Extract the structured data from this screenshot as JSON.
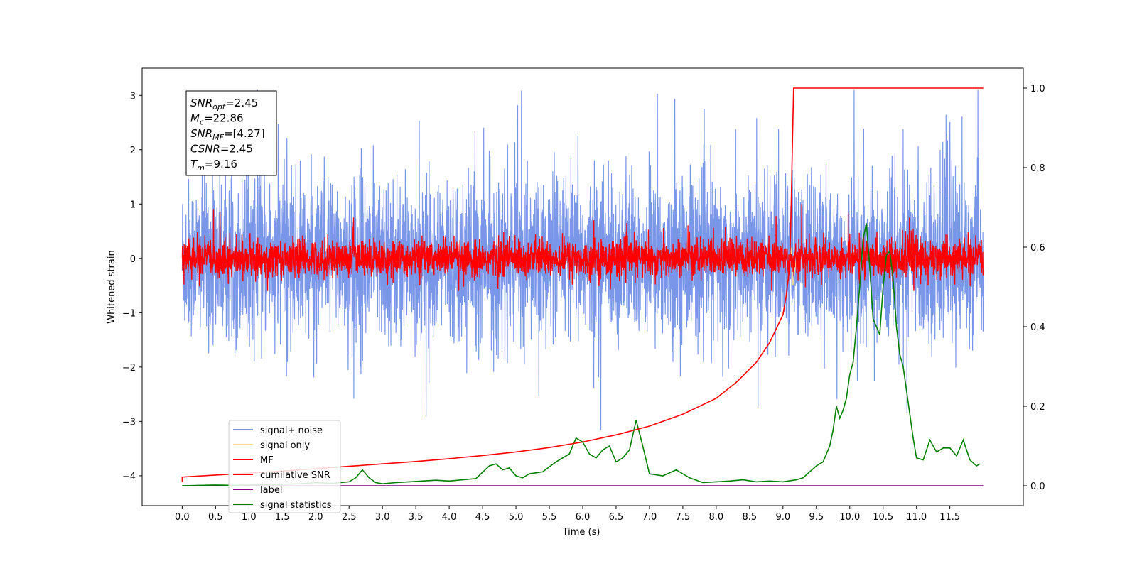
{
  "chart_data": {
    "type": "line",
    "title": "",
    "xlabel": "Time (s)",
    "ylabel": "Whitened strain",
    "y2label": "",
    "xlim": [
      -0.6,
      12.6
    ],
    "ylim": [
      -4.55,
      3.5
    ],
    "y2lim": [
      -0.05,
      1.05
    ],
    "x_ticks": [
      0.0,
      0.5,
      1.0,
      1.5,
      2.0,
      2.5,
      3.0,
      3.5,
      4.0,
      4.5,
      5.0,
      5.5,
      6.0,
      6.5,
      7.0,
      7.5,
      8.0,
      8.5,
      9.0,
      9.5,
      10.0,
      10.5,
      11.0,
      11.5
    ],
    "x_tick_labels": [
      "0.0",
      "0.5",
      "1.0",
      "1.5",
      "2.0",
      "2.5",
      "3.0",
      "3.5",
      "4.0",
      "4.5",
      "5.0",
      "5.5",
      "6.0",
      "6.5",
      "7.0",
      "7.5",
      "8.0",
      "8.5",
      "9.0",
      "9.5",
      "10.0",
      "10.5",
      "11.0",
      "11.5"
    ],
    "y_ticks": [
      -4,
      -3,
      -2,
      -1,
      0,
      1,
      2,
      3
    ],
    "y_tick_labels": [
      "−4",
      "−3",
      "−2",
      "−1",
      "0",
      "1",
      "2",
      "3"
    ],
    "y2_ticks": [
      0.0,
      0.2,
      0.4,
      0.6,
      0.8,
      1.0
    ],
    "y2_tick_labels": [
      "0.0",
      "0.2",
      "0.4",
      "0.6",
      "0.8",
      "1.0"
    ],
    "grid": false,
    "legend_position": "lower-left",
    "noise_trace": {
      "x_range": [
        0.0,
        12.0
      ],
      "baseline_range": [
        -1.7,
        1.7
      ],
      "approx_range": [
        -4.0,
        3.1
      ],
      "note_visible": "dense oscillating trace"
    },
    "mf_trace": {
      "x_range": [
        0.0,
        12.0
      ],
      "baseline_range": [
        -0.4,
        0.4
      ],
      "approx_range": [
        -0.6,
        1.0
      ]
    },
    "cumulative_snr": {
      "x": [
        0.0,
        0.5,
        1.0,
        1.5,
        2.0,
        2.5,
        3.0,
        3.5,
        4.0,
        4.5,
        5.0,
        5.5,
        6.0,
        6.5,
        7.0,
        7.5,
        8.0,
        8.3,
        8.6,
        8.8,
        9.0,
        9.05,
        9.1,
        9.12,
        9.14,
        9.16,
        12.0
      ],
      "y": [
        0.022,
        0.027,
        0.032,
        0.037,
        0.043,
        0.049,
        0.055,
        0.061,
        0.068,
        0.076,
        0.085,
        0.096,
        0.11,
        0.128,
        0.15,
        0.18,
        0.22,
        0.26,
        0.31,
        0.36,
        0.43,
        0.48,
        0.55,
        0.68,
        0.85,
        1.0,
        1.0
      ]
    },
    "label": {
      "x": [
        0.0,
        12.0
      ],
      "y": [
        0.0,
        0.0
      ]
    },
    "signal_statistics": {
      "x": [
        0.0,
        0.25,
        0.5,
        0.75,
        1.0,
        1.25,
        1.5,
        1.75,
        2.0,
        2.25,
        2.5,
        2.6,
        2.7,
        2.8,
        2.9,
        3.0,
        3.2,
        3.4,
        3.6,
        3.8,
        4.0,
        4.2,
        4.4,
        4.6,
        4.7,
        4.8,
        4.9,
        5.0,
        5.1,
        5.2,
        5.4,
        5.6,
        5.8,
        5.9,
        6.0,
        6.1,
        6.2,
        6.3,
        6.4,
        6.5,
        6.6,
        6.7,
        6.8,
        6.9,
        7.0,
        7.2,
        7.4,
        7.6,
        7.8,
        8.0,
        8.2,
        8.4,
        8.6,
        8.8,
        9.0,
        9.2,
        9.3,
        9.4,
        9.5,
        9.6,
        9.7,
        9.75,
        9.8,
        9.85,
        9.9,
        9.95,
        10.0,
        10.05,
        10.1,
        10.15,
        10.2,
        10.25,
        10.3,
        10.35,
        10.4,
        10.45,
        10.5,
        10.55,
        10.6,
        10.65,
        10.7,
        10.75,
        10.8,
        10.85,
        10.9,
        10.95,
        11.0,
        11.1,
        11.2,
        11.3,
        11.4,
        11.5,
        11.6,
        11.7,
        11.8,
        11.9,
        11.95
      ],
      "y": [
        0.0,
        0.001,
        0.002,
        0.001,
        0.002,
        0.003,
        0.004,
        0.005,
        0.008,
        0.006,
        0.01,
        0.02,
        0.04,
        0.02,
        0.008,
        0.005,
        0.008,
        0.01,
        0.012,
        0.014,
        0.012,
        0.015,
        0.018,
        0.05,
        0.055,
        0.04,
        0.045,
        0.025,
        0.02,
        0.03,
        0.035,
        0.06,
        0.08,
        0.12,
        0.11,
        0.08,
        0.07,
        0.09,
        0.1,
        0.06,
        0.07,
        0.09,
        0.165,
        0.1,
        0.03,
        0.025,
        0.04,
        0.02,
        0.008,
        0.01,
        0.012,
        0.015,
        0.01,
        0.012,
        0.01,
        0.015,
        0.02,
        0.035,
        0.05,
        0.06,
        0.1,
        0.14,
        0.2,
        0.17,
        0.19,
        0.22,
        0.28,
        0.31,
        0.4,
        0.5,
        0.62,
        0.66,
        0.55,
        0.42,
        0.4,
        0.38,
        0.5,
        0.58,
        0.59,
        0.52,
        0.4,
        0.33,
        0.3,
        0.24,
        0.18,
        0.12,
        0.07,
        0.065,
        0.115,
        0.085,
        0.095,
        0.095,
        0.075,
        0.115,
        0.065,
        0.05,
        0.055
      ]
    },
    "series": [
      {
        "name": "signal+ noise",
        "color": "#7a96e8"
      },
      {
        "name": "signal only",
        "color": "#f9d98a"
      },
      {
        "name": "MF",
        "color": "#ff0000"
      },
      {
        "name": "cumilative SNR",
        "color": "#ff0000"
      },
      {
        "name": "label",
        "color": "#800080"
      },
      {
        "name": "signal statistics",
        "color": "#008000"
      }
    ],
    "annotation": {
      "lines": [
        {
          "main": "SNR",
          "sub": "opt",
          "value": "=2.45"
        },
        {
          "main": "M",
          "sub": "c",
          "value": "=22.86"
        },
        {
          "main": "SNR",
          "sub": "MF",
          "value": "=[4.27]"
        },
        {
          "main": "CSNR",
          "sub": "",
          "value": "=2.45"
        },
        {
          "main": "T",
          "sub": "m",
          "value": "=9.16"
        }
      ]
    }
  }
}
